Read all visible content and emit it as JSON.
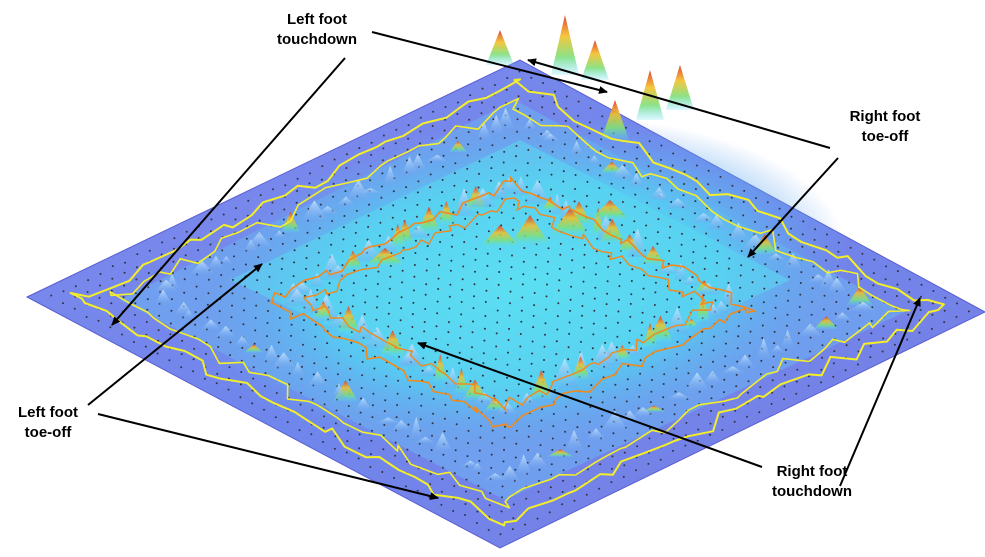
{
  "annotations": {
    "left_foot_touchdown": {
      "line1": "Left foot",
      "line2": "touchdown"
    },
    "right_foot_toe_off": {
      "line1": "Right foot",
      "line2": "toe-off"
    },
    "left_foot_toe_off": {
      "line1": "Left foot",
      "line2": "toe-off"
    },
    "right_foot_touchdown": {
      "line1": "Right foot",
      "line2": "touchdown"
    }
  },
  "colors": {
    "surface_low": "#7b7fe6",
    "surface_mid": "#5ad8f0",
    "surface_peak": "#e03020",
    "outer_path": "#f4ee2a",
    "inner_path": "#f08a1e",
    "grid_dots": "#333344",
    "arrow": "#000000"
  }
}
